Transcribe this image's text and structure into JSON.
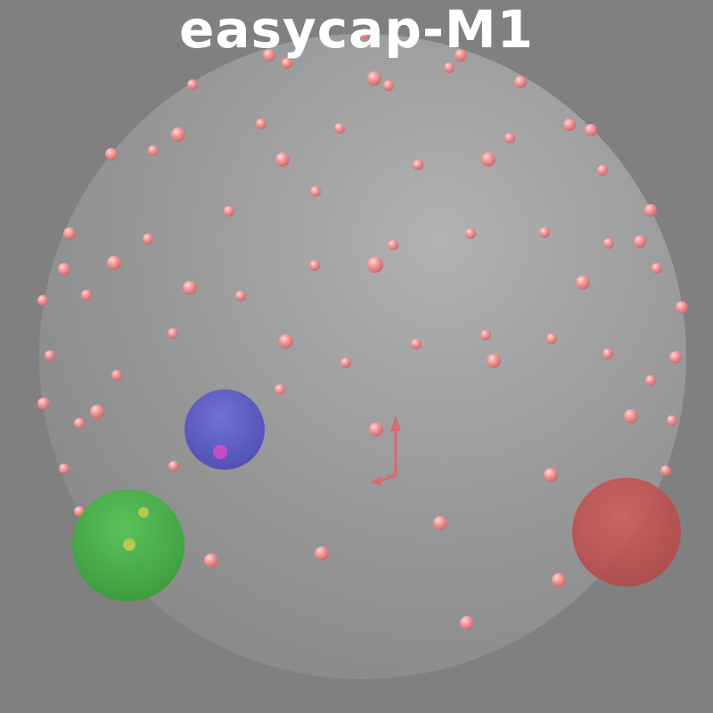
{
  "title": "easycap-M1",
  "colors": {
    "background": "#808080",
    "head": "#a2a2a2",
    "electrode": "#f08a8a",
    "nasion": "#5a5ad0",
    "left_fiducial": "#3ec03e",
    "right_fiducial": "#cc4f4f",
    "axes": "#d96a6a"
  }
}
